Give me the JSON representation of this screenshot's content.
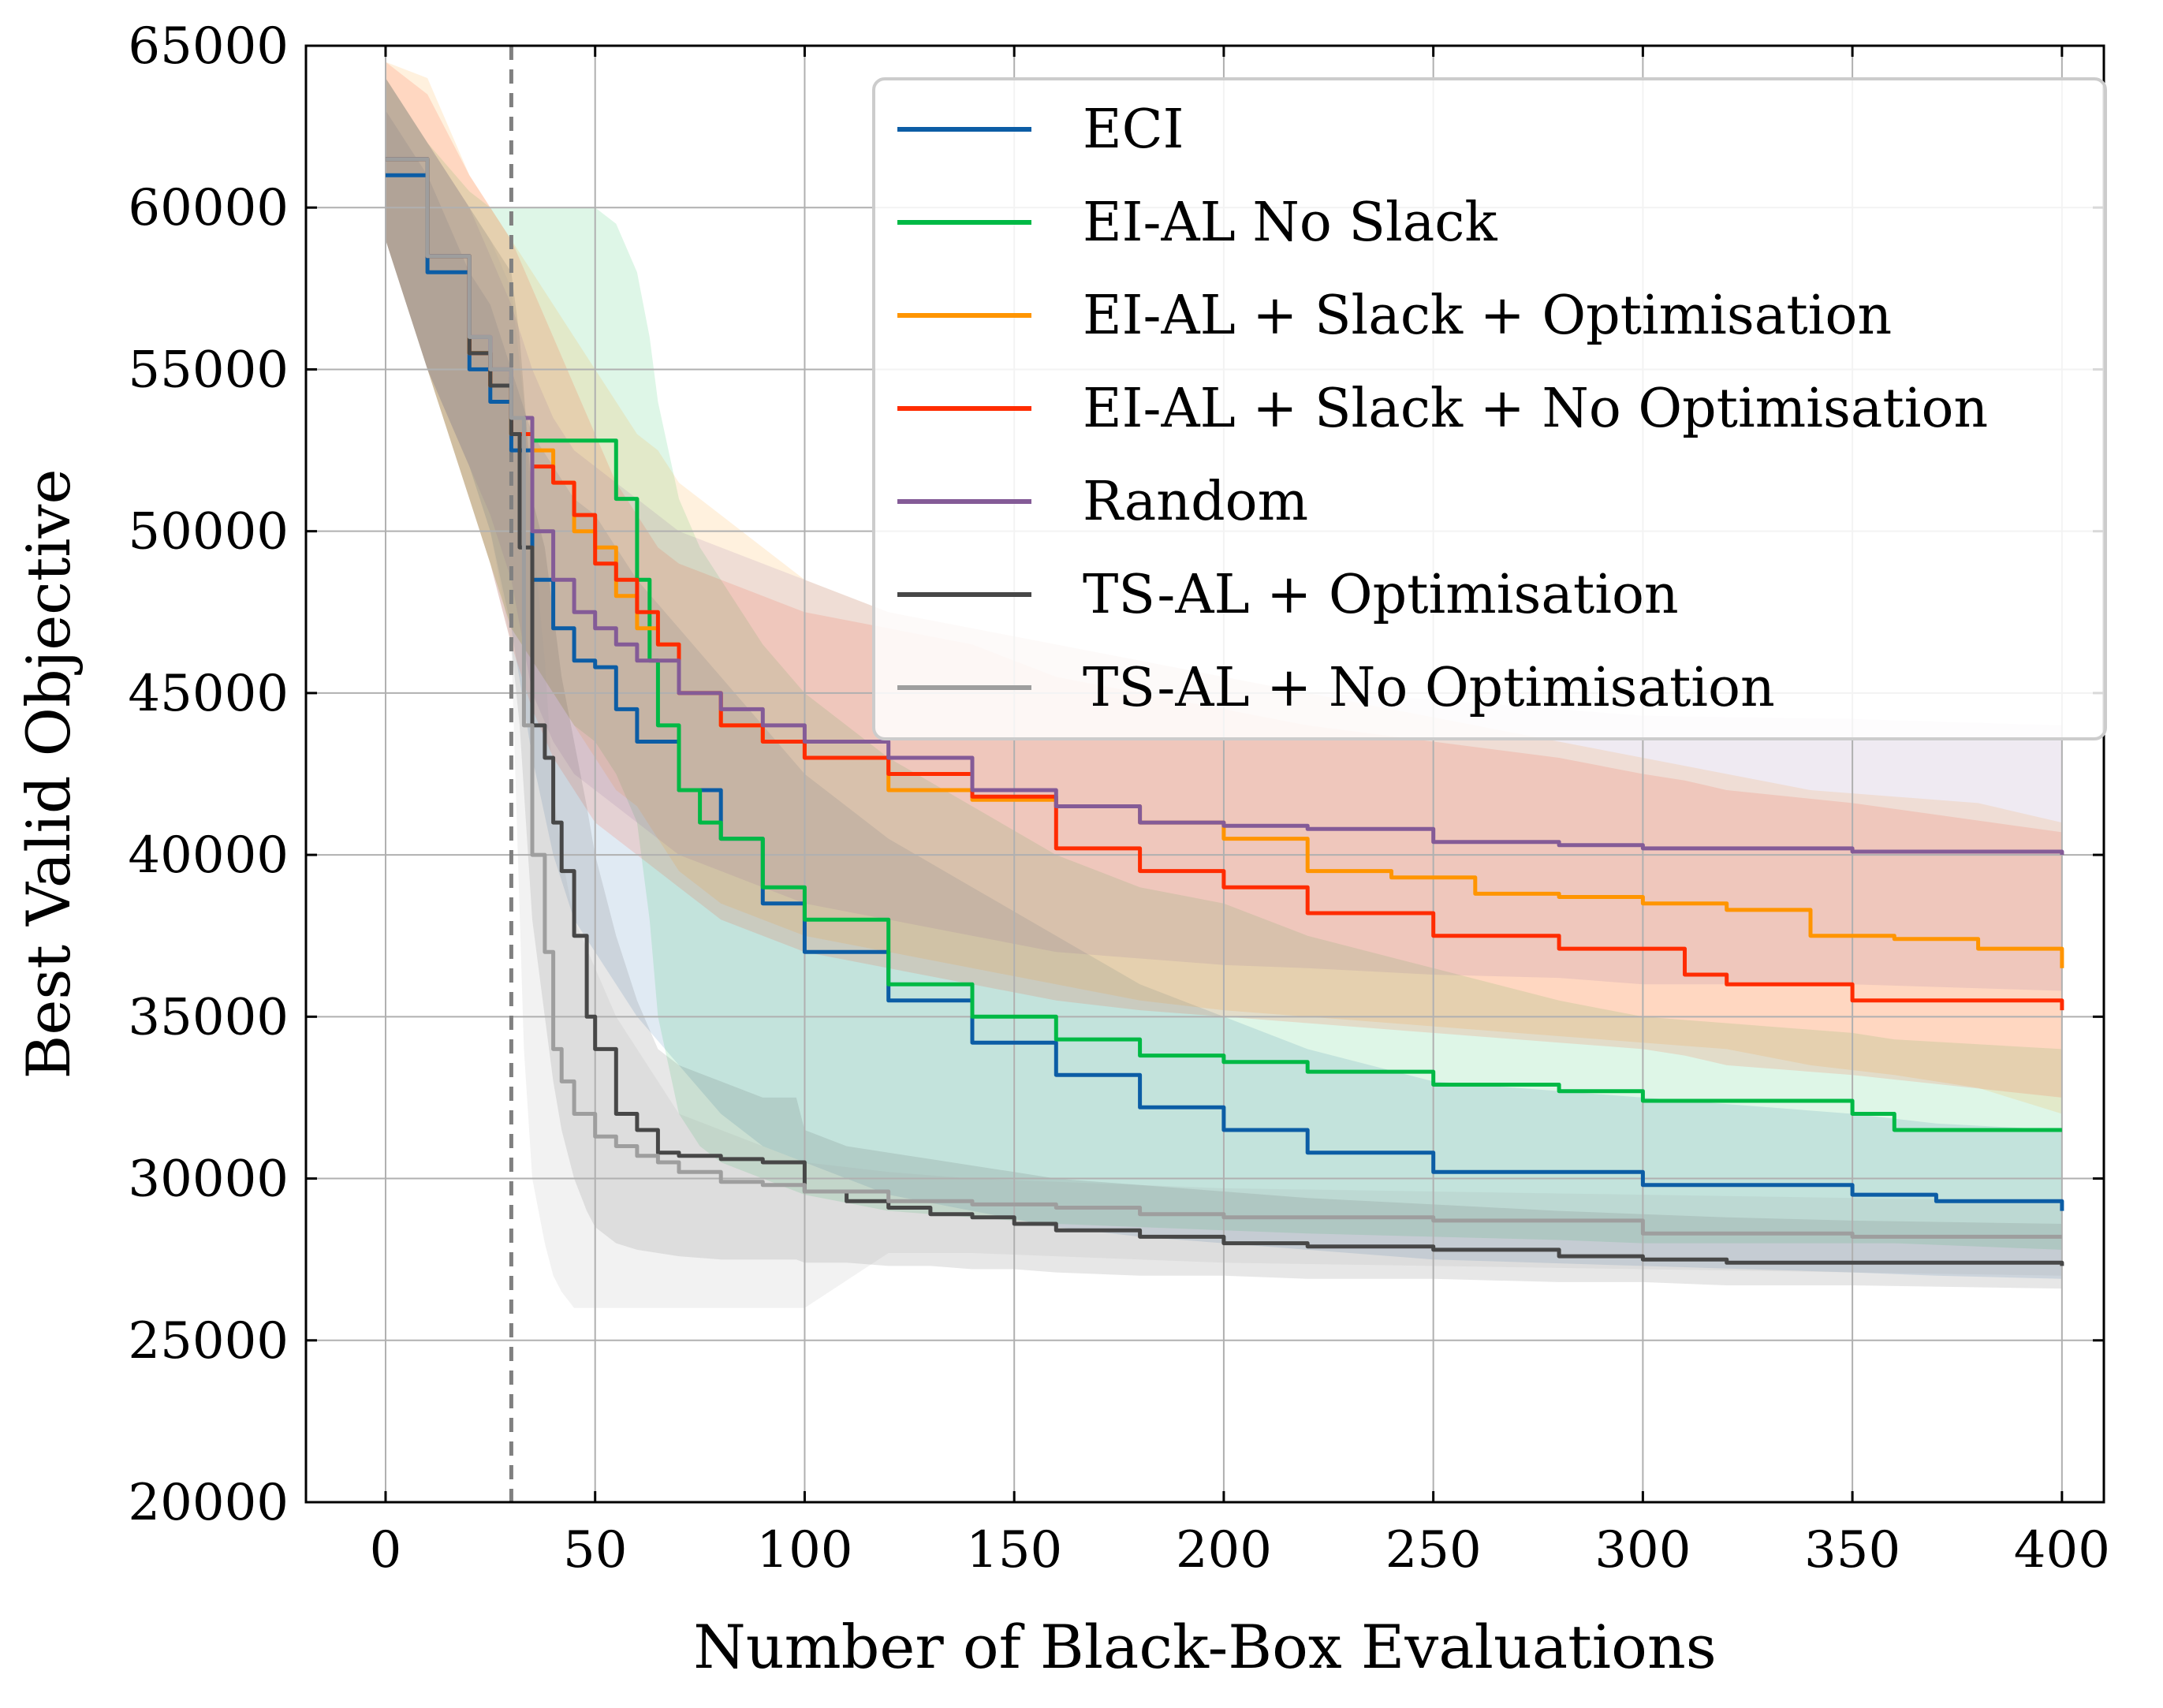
{
  "chart_data": {
    "type": "line",
    "title": "",
    "xlabel": "Number of Black-Box Evaluations",
    "ylabel": "Best Valid Objective",
    "xlim": [
      -19,
      410
    ],
    "ylim": [
      20000,
      65000
    ],
    "xticks": [
      0,
      50,
      100,
      150,
      200,
      250,
      300,
      350,
      400
    ],
    "yticks": [
      20000,
      25000,
      30000,
      35000,
      40000,
      45000,
      50000,
      55000,
      60000,
      65000
    ],
    "grid": true,
    "legend_position": "top-right",
    "annotations": [
      {
        "type": "vertical-dashed-line",
        "x": 30,
        "color": "#808080"
      }
    ],
    "series": [
      {
        "name": "ECI",
        "color": "#0c5da5",
        "x": [
          0,
          10,
          20,
          25,
          30,
          35,
          40,
          45,
          50,
          55,
          60,
          70,
          80,
          90,
          100,
          120,
          140,
          160,
          180,
          200,
          220,
          250,
          300,
          350,
          370,
          400
        ],
        "y": [
          61000,
          58000,
          55000,
          54000,
          52500,
          48500,
          47000,
          46000,
          45800,
          44500,
          43500,
          42000,
          40500,
          38500,
          37000,
          35500,
          34200,
          33200,
          32200,
          31500,
          30800,
          30200,
          29800,
          29500,
          29300,
          29000
        ],
        "lower": [
          59000,
          55000,
          52000,
          50000,
          47000,
          43000,
          40000,
          38000,
          37000,
          36000,
          35000,
          33500,
          32000,
          31000,
          30500,
          29500,
          29000,
          28500,
          28200,
          28000,
          27800,
          27500,
          27300,
          27100,
          27000,
          26900
        ],
        "upper": [
          63000,
          61000,
          58000,
          57000,
          55000,
          53000,
          52000,
          51000,
          50500,
          49500,
          48500,
          47000,
          45500,
          44000,
          42500,
          40500,
          39000,
          37500,
          36000,
          35000,
          34000,
          33000,
          32500,
          32000,
          31700,
          31500
        ]
      },
      {
        "name": "EI-AL No Slack",
        "color": "#00b945",
        "x": [
          0,
          10,
          20,
          25,
          30,
          35,
          40,
          45,
          50,
          55,
          60,
          63,
          65,
          70,
          75,
          80,
          90,
          100,
          120,
          140,
          160,
          180,
          200,
          220,
          250,
          280,
          300,
          350,
          360,
          400
        ],
        "y": [
          61500,
          58500,
          55500,
          54500,
          53000,
          52800,
          52800,
          52800,
          52800,
          51000,
          48500,
          46000,
          44000,
          42000,
          41000,
          40500,
          39000,
          38000,
          36000,
          35000,
          34300,
          33800,
          33600,
          33300,
          32900,
          32700,
          32400,
          32000,
          31500,
          31500
        ],
        "lower": [
          59000,
          55000,
          51000,
          49000,
          47000,
          46000,
          45000,
          44000,
          43500,
          42500,
          41000,
          38000,
          35000,
          32000,
          31000,
          30500,
          30000,
          29500,
          29000,
          28800,
          28600,
          28500,
          28400,
          28300,
          28200,
          28100,
          28000,
          28000,
          28000,
          27800
        ],
        "upper": [
          64000,
          62000,
          60500,
          60000,
          60000,
          60000,
          60000,
          60000,
          60000,
          59500,
          58000,
          56000,
          54000,
          51000,
          49500,
          48500,
          46500,
          45000,
          43000,
          41500,
          40000,
          39000,
          38500,
          37500,
          36500,
          35500,
          35000,
          34500,
          34300,
          34000
        ]
      },
      {
        "name": "EI-AL + Slack + Optimisation",
        "color": "#ff9500",
        "x": [
          0,
          10,
          20,
          25,
          30,
          35,
          40,
          45,
          50,
          55,
          60,
          65,
          70,
          80,
          90,
          100,
          120,
          140,
          160,
          180,
          200,
          220,
          240,
          260,
          280,
          300,
          320,
          340,
          360,
          380,
          400
        ],
        "y": [
          61500,
          58500,
          55500,
          54500,
          53000,
          52500,
          51500,
          50000,
          49500,
          48000,
          47000,
          46500,
          45000,
          44000,
          43500,
          43000,
          42000,
          41700,
          41500,
          41000,
          40500,
          39500,
          39300,
          38800,
          38700,
          38500,
          38300,
          37500,
          37400,
          37100,
          36500
        ],
        "lower": [
          59000,
          55000,
          51000,
          49000,
          47000,
          46000,
          45000,
          44000,
          43000,
          42000,
          41500,
          40500,
          39500,
          38500,
          38000,
          37500,
          37000,
          36500,
          36000,
          35500,
          35200,
          35000,
          34800,
          34600,
          34400,
          34200,
          34000,
          33500,
          33200,
          32800,
          32000
        ],
        "upper": [
          64500,
          64000,
          61000,
          60000,
          59000,
          58000,
          57000,
          56000,
          55000,
          54000,
          53000,
          52500,
          51500,
          50500,
          49500,
          48500,
          47500,
          47000,
          46500,
          46000,
          45500,
          45000,
          44500,
          44000,
          43500,
          43000,
          42500,
          42000,
          41800,
          41600,
          41000
        ]
      },
      {
        "name": "EI-AL + Slack + No Optimisation",
        "color": "#ff2c00",
        "x": [
          0,
          10,
          20,
          25,
          30,
          35,
          40,
          45,
          50,
          55,
          60,
          65,
          70,
          80,
          90,
          100,
          120,
          140,
          160,
          180,
          200,
          220,
          250,
          280,
          300,
          310,
          320,
          350,
          400
        ],
        "y": [
          61500,
          58500,
          55500,
          54500,
          53000,
          52000,
          51500,
          50500,
          49000,
          48500,
          47500,
          46500,
          45000,
          44000,
          43500,
          43000,
          42500,
          41800,
          40200,
          39500,
          39000,
          38200,
          37500,
          37100,
          37100,
          36300,
          36000,
          35500,
          35200
        ],
        "lower": [
          59000,
          55000,
          51000,
          49000,
          46500,
          44500,
          43000,
          42000,
          41000,
          40500,
          40000,
          39500,
          39000,
          38000,
          37500,
          37000,
          36500,
          36000,
          35500,
          35200,
          35000,
          34800,
          34500,
          34200,
          34000,
          33800,
          33500,
          33200,
          32500
        ],
        "upper": [
          64500,
          63500,
          61000,
          60000,
          59000,
          57500,
          56000,
          54500,
          53000,
          51500,
          50500,
          49500,
          49000,
          48500,
          48000,
          47500,
          47000,
          46500,
          45500,
          45000,
          44500,
          44000,
          43500,
          43000,
          42500,
          42300,
          42000,
          41600,
          40700
        ]
      },
      {
        "name": "Random",
        "color": "#845b97",
        "x": [
          0,
          10,
          20,
          25,
          30,
          35,
          40,
          45,
          50,
          55,
          60,
          70,
          80,
          90,
          100,
          120,
          140,
          160,
          180,
          200,
          220,
          250,
          280,
          300,
          350,
          400
        ],
        "y": [
          61500,
          58500,
          56000,
          55000,
          53500,
          50000,
          48500,
          47500,
          47000,
          46500,
          46000,
          45000,
          44500,
          44000,
          43500,
          43000,
          42000,
          41500,
          41000,
          40900,
          40800,
          40400,
          40300,
          40200,
          40100,
          40000
        ],
        "lower": [
          59000,
          55000,
          52000,
          50500,
          48500,
          45000,
          43500,
          42500,
          42000,
          41500,
          41000,
          40000,
          39500,
          39000,
          38500,
          38000,
          37500,
          37000,
          36800,
          36600,
          36500,
          36300,
          36200,
          36000,
          36000,
          35800
        ],
        "upper": [
          64000,
          62000,
          60000,
          58500,
          57000,
          55000,
          53500,
          52500,
          52000,
          51500,
          51000,
          50000,
          49500,
          49000,
          48500,
          47500,
          47000,
          46500,
          46000,
          45500,
          45000,
          44800,
          44500,
          44300,
          44200,
          44000
        ]
      },
      {
        "name": "TS-AL + Optimisation",
        "color": "#474747",
        "x": [
          0,
          10,
          20,
          25,
          30,
          32,
          35,
          38,
          40,
          42,
          45,
          48,
          50,
          55,
          60,
          65,
          70,
          80,
          90,
          98,
          100,
          110,
          120,
          130,
          140,
          150,
          160,
          180,
          200,
          220,
          250,
          280,
          300,
          320,
          350,
          400
        ],
        "y": [
          61500,
          58500,
          55500,
          54500,
          53000,
          49500,
          44000,
          43000,
          41000,
          39500,
          37500,
          35000,
          34000,
          32000,
          31500,
          30800,
          30700,
          30600,
          30500,
          30500,
          29600,
          29300,
          29100,
          28900,
          28800,
          28600,
          28400,
          28200,
          28000,
          27900,
          27800,
          27600,
          27500,
          27400,
          27400,
          27300
        ],
        "lower": [
          59000,
          55000,
          51000,
          49000,
          46500,
          44000,
          38000,
          35000,
          33000,
          31500,
          30000,
          29000,
          28500,
          28000,
          27800,
          27700,
          27600,
          27500,
          27500,
          27500,
          27400,
          27400,
          27300,
          27300,
          27200,
          27200,
          27100,
          27000,
          27000,
          26900,
          26900,
          26800,
          26800,
          26700,
          26700,
          26600
        ],
        "upper": [
          64000,
          62000,
          60000,
          59000,
          58000,
          56000,
          51000,
          49500,
          47500,
          45500,
          43500,
          41500,
          40000,
          37500,
          35500,
          34000,
          33500,
          33000,
          32500,
          32500,
          31500,
          31000,
          30800,
          30600,
          30400,
          30200,
          30000,
          29800,
          29600,
          29400,
          29200,
          29000,
          28900,
          28800,
          28700,
          28600
        ]
      },
      {
        "name": "TS-AL + No Optimisation",
        "color": "#9e9e9e",
        "x": [
          0,
          10,
          20,
          25,
          30,
          33,
          35,
          38,
          40,
          42,
          45,
          50,
          55,
          60,
          65,
          70,
          80,
          90,
          100,
          120,
          140,
          160,
          180,
          200,
          250,
          300,
          350,
          400
        ],
        "y": [
          61500,
          58500,
          56000,
          55000,
          53500,
          44000,
          40000,
          37000,
          34000,
          33000,
          32000,
          31300,
          31000,
          30700,
          30500,
          30200,
          29900,
          29800,
          29600,
          29300,
          29200,
          29100,
          28900,
          28800,
          28700,
          28300,
          28200,
          28200
        ],
        "lower": [
          59000,
          55000,
          52000,
          50000,
          46500,
          34000,
          30000,
          28000,
          27000,
          26500,
          26000,
          26000,
          26000,
          26000,
          26000,
          26000,
          26000,
          26000,
          26000,
          27700,
          27700,
          27600,
          27500,
          27400,
          27300,
          27200,
          27100,
          27000
        ],
        "upper": [
          64000,
          62000,
          60000,
          59000,
          57500,
          54000,
          50000,
          46000,
          42000,
          40000,
          38000,
          36500,
          35000,
          34000,
          33000,
          32000,
          31500,
          31000,
          30500,
          30200,
          30000,
          29900,
          29800,
          29700,
          29600,
          29500,
          29400,
          29300
        ]
      }
    ]
  }
}
